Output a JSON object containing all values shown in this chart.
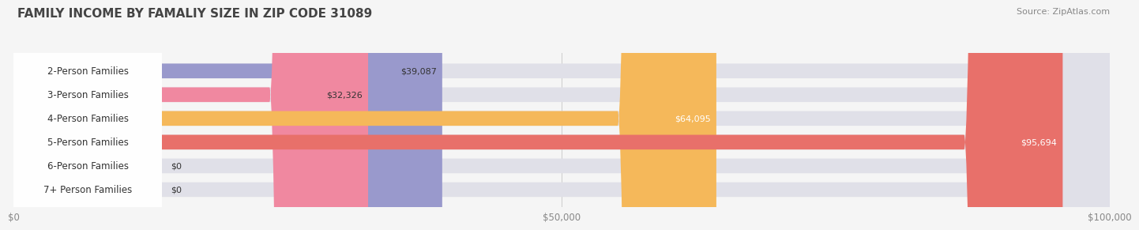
{
  "title": "FAMILY INCOME BY FAMALIY SIZE IN ZIP CODE 31089",
  "source": "Source: ZipAtlas.com",
  "categories": [
    "2-Person Families",
    "3-Person Families",
    "4-Person Families",
    "5-Person Families",
    "6-Person Families",
    "7+ Person Families"
  ],
  "values": [
    39087,
    32326,
    64095,
    95694,
    0,
    0
  ],
  "bar_colors": [
    "#9999cc",
    "#f088a0",
    "#f5b85a",
    "#e8706a",
    "#a8c4e0",
    "#c8a8d8"
  ],
  "label_colors": [
    "#333333",
    "#333333",
    "#ffffff",
    "#ffffff",
    "#333333",
    "#333333"
  ],
  "value_labels": [
    "$39,087",
    "$32,326",
    "$64,095",
    "$95,694",
    "$0",
    "$0"
  ],
  "xlim": [
    0,
    100000
  ],
  "xticks": [
    0,
    50000,
    100000
  ],
  "xticklabels": [
    "$0",
    "$50,000",
    "$100,000"
  ],
  "background_color": "#f5f5f5",
  "title_fontsize": 11,
  "source_fontsize": 8,
  "label_fontsize": 8.5,
  "value_fontsize": 8,
  "bar_height": 0.62
}
